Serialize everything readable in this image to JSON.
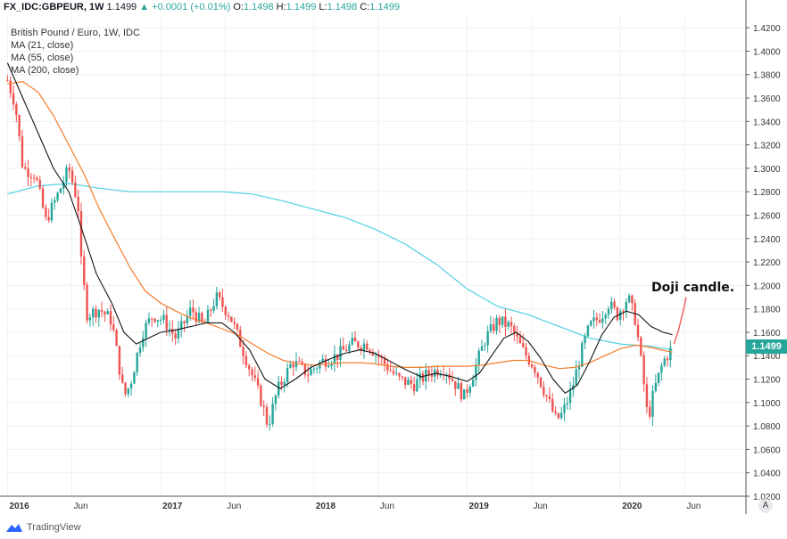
{
  "header": {
    "symbol": "FX_IDC:GBPEUR, 1W",
    "last": "1.1499",
    "change": "▲ +0.0001 (+0.01%)",
    "o_label": "O:",
    "o": "1.1498",
    "h_label": "H:",
    "h": "1.1499",
    "l_label": "L:",
    "l": "1.1498",
    "c_label": "C:",
    "c": "1.1499"
  },
  "legend": {
    "title": "British Pound / Euro, 1W, IDC",
    "ma1": "MA (21, close)",
    "ma2": "MA (55, close)",
    "ma3": "MA (200, close)"
  },
  "annotation": "Doji candle.",
  "price_badge": "1.1499",
  "scale_button": "A",
  "footer": {
    "brand": "TradingView"
  },
  "colors": {
    "up": "#26a69a",
    "down": "#ef5350",
    "ma21": "#131313",
    "ma55": "#f57c2b",
    "ma200": "#4dd0e1",
    "grid": "#eef0f3",
    "axis": "#555555"
  },
  "chart_data": {
    "type": "candlestick",
    "title": "British Pound / Euro, 1W, IDC",
    "ylim": [
      1.02,
      1.43
    ],
    "yticks": [
      "1.4200",
      "1.4000",
      "1.3800",
      "1.3600",
      "1.3400",
      "1.3200",
      "1.3000",
      "1.2800",
      "1.2600",
      "1.2400",
      "1.2200",
      "1.2000",
      "1.1800",
      "1.1600",
      "1.1400",
      "1.1200",
      "1.1000",
      "1.0800",
      "1.0600",
      "1.0400",
      "1.0200"
    ],
    "xticks": [
      {
        "label": "2016",
        "t": 2016.0
      },
      {
        "label": "Jun",
        "t": 2016.42
      },
      {
        "label": "2017",
        "t": 2017.0
      },
      {
        "label": "Jun",
        "t": 2017.42
      },
      {
        "label": "2018",
        "t": 2018.0
      },
      {
        "label": "Jun",
        "t": 2018.42
      },
      {
        "label": "2019",
        "t": 2019.0
      },
      {
        "label": "Jun",
        "t": 2019.42
      },
      {
        "label": "2020",
        "t": 2020.0
      },
      {
        "label": "Jun",
        "t": 2020.42
      }
    ],
    "xlim": [
      2015.98,
      2020.82
    ],
    "close_anchors": [
      [
        2016.0,
        1.375
      ],
      [
        2016.05,
        1.355
      ],
      [
        2016.1,
        1.3
      ],
      [
        2016.18,
        1.295
      ],
      [
        2016.25,
        1.255
      ],
      [
        2016.32,
        1.275
      ],
      [
        2016.4,
        1.3
      ],
      [
        2016.46,
        1.27
      ],
      [
        2016.48,
        1.22
      ],
      [
        2016.52,
        1.175
      ],
      [
        2016.6,
        1.18
      ],
      [
        2016.68,
        1.17
      ],
      [
        2016.76,
        1.105
      ],
      [
        2016.8,
        1.115
      ],
      [
        2016.88,
        1.16
      ],
      [
        2016.95,
        1.175
      ],
      [
        2017.02,
        1.17
      ],
      [
        2017.1,
        1.155
      ],
      [
        2017.2,
        1.18
      ],
      [
        2017.28,
        1.165
      ],
      [
        2017.36,
        1.19
      ],
      [
        2017.45,
        1.175
      ],
      [
        2017.55,
        1.14
      ],
      [
        2017.66,
        1.1
      ],
      [
        2017.7,
        1.08
      ],
      [
        2017.76,
        1.11
      ],
      [
        2017.86,
        1.135
      ],
      [
        2017.96,
        1.125
      ],
      [
        2018.05,
        1.135
      ],
      [
        2018.15,
        1.14
      ],
      [
        2018.25,
        1.15
      ],
      [
        2018.35,
        1.15
      ],
      [
        2018.45,
        1.135
      ],
      [
        2018.55,
        1.12
      ],
      [
        2018.65,
        1.115
      ],
      [
        2018.75,
        1.125
      ],
      [
        2018.85,
        1.13
      ],
      [
        2018.98,
        1.105
      ],
      [
        2019.04,
        1.125
      ],
      [
        2019.12,
        1.155
      ],
      [
        2019.2,
        1.17
      ],
      [
        2019.28,
        1.165
      ],
      [
        2019.36,
        1.145
      ],
      [
        2019.44,
        1.13
      ],
      [
        2019.52,
        1.105
      ],
      [
        2019.58,
        1.085
      ],
      [
        2019.62,
        1.09
      ],
      [
        2019.68,
        1.11
      ],
      [
        2019.76,
        1.15
      ],
      [
        2019.8,
        1.165
      ],
      [
        2019.88,
        1.175
      ],
      [
        2019.92,
        1.185
      ],
      [
        2019.98,
        1.175
      ],
      [
        2020.05,
        1.19
      ],
      [
        2020.1,
        1.17
      ],
      [
        2020.15,
        1.12
      ],
      [
        2020.18,
        1.085
      ],
      [
        2020.22,
        1.11
      ],
      [
        2020.28,
        1.135
      ],
      [
        2020.33,
        1.145
      ],
      [
        2020.34,
        1.1499
      ]
    ],
    "ma21": [
      [
        2016.0,
        1.39
      ],
      [
        2016.1,
        1.36
      ],
      [
        2016.2,
        1.33
      ],
      [
        2016.3,
        1.3
      ],
      [
        2016.4,
        1.28
      ],
      [
        2016.48,
        1.25
      ],
      [
        2016.58,
        1.21
      ],
      [
        2016.68,
        1.185
      ],
      [
        2016.76,
        1.16
      ],
      [
        2016.84,
        1.15
      ],
      [
        2016.92,
        1.155
      ],
      [
        2017.0,
        1.16
      ],
      [
        2017.1,
        1.162
      ],
      [
        2017.2,
        1.165
      ],
      [
        2017.3,
        1.168
      ],
      [
        2017.4,
        1.168
      ],
      [
        2017.48,
        1.16
      ],
      [
        2017.58,
        1.145
      ],
      [
        2017.68,
        1.12
      ],
      [
        2017.78,
        1.112
      ],
      [
        2017.88,
        1.12
      ],
      [
        2017.98,
        1.13
      ],
      [
        2018.1,
        1.137
      ],
      [
        2018.2,
        1.142
      ],
      [
        2018.3,
        1.145
      ],
      [
        2018.4,
        1.142
      ],
      [
        2018.5,
        1.135
      ],
      [
        2018.6,
        1.128
      ],
      [
        2018.7,
        1.122
      ],
      [
        2018.8,
        1.125
      ],
      [
        2018.9,
        1.122
      ],
      [
        2019.0,
        1.118
      ],
      [
        2019.08,
        1.125
      ],
      [
        2019.16,
        1.14
      ],
      [
        2019.24,
        1.155
      ],
      [
        2019.32,
        1.16
      ],
      [
        2019.4,
        1.152
      ],
      [
        2019.48,
        1.138
      ],
      [
        2019.56,
        1.12
      ],
      [
        2019.64,
        1.108
      ],
      [
        2019.72,
        1.115
      ],
      [
        2019.8,
        1.135
      ],
      [
        2019.88,
        1.158
      ],
      [
        2019.96,
        1.173
      ],
      [
        2020.04,
        1.178
      ],
      [
        2020.12,
        1.175
      ],
      [
        2020.2,
        1.165
      ],
      [
        2020.28,
        1.16
      ],
      [
        2020.34,
        1.158
      ]
    ],
    "ma55": [
      [
        2016.0,
        1.372
      ],
      [
        2016.1,
        1.374
      ],
      [
        2016.2,
        1.365
      ],
      [
        2016.3,
        1.345
      ],
      [
        2016.4,
        1.32
      ],
      [
        2016.5,
        1.295
      ],
      [
        2016.6,
        1.265
      ],
      [
        2016.7,
        1.24
      ],
      [
        2016.8,
        1.215
      ],
      [
        2016.9,
        1.195
      ],
      [
        2017.0,
        1.185
      ],
      [
        2017.1,
        1.178
      ],
      [
        2017.2,
        1.172
      ],
      [
        2017.3,
        1.168
      ],
      [
        2017.4,
        1.163
      ],
      [
        2017.5,
        1.158
      ],
      [
        2017.6,
        1.15
      ],
      [
        2017.7,
        1.142
      ],
      [
        2017.8,
        1.136
      ],
      [
        2017.9,
        1.133
      ],
      [
        2018.0,
        1.132
      ],
      [
        2018.1,
        1.133
      ],
      [
        2018.2,
        1.134
      ],
      [
        2018.3,
        1.134
      ],
      [
        2018.4,
        1.133
      ],
      [
        2018.5,
        1.131
      ],
      [
        2018.6,
        1.13
      ],
      [
        2018.7,
        1.13
      ],
      [
        2018.8,
        1.131
      ],
      [
        2018.9,
        1.131
      ],
      [
        2019.0,
        1.131
      ],
      [
        2019.1,
        1.132
      ],
      [
        2019.2,
        1.134
      ],
      [
        2019.3,
        1.136
      ],
      [
        2019.4,
        1.136
      ],
      [
        2019.5,
        1.132
      ],
      [
        2019.6,
        1.129
      ],
      [
        2019.7,
        1.13
      ],
      [
        2019.8,
        1.134
      ],
      [
        2019.9,
        1.14
      ],
      [
        2020.0,
        1.146
      ],
      [
        2020.1,
        1.149
      ],
      [
        2020.2,
        1.147
      ],
      [
        2020.3,
        1.144
      ],
      [
        2020.34,
        1.143
      ]
    ],
    "ma200": [
      [
        2016.0,
        1.278
      ],
      [
        2016.2,
        1.285
      ],
      [
        2016.4,
        1.287
      ],
      [
        2016.6,
        1.283
      ],
      [
        2016.8,
        1.28
      ],
      [
        2017.0,
        1.28
      ],
      [
        2017.2,
        1.28
      ],
      [
        2017.4,
        1.28
      ],
      [
        2017.6,
        1.278
      ],
      [
        2017.8,
        1.272
      ],
      [
        2018.0,
        1.265
      ],
      [
        2018.2,
        1.258
      ],
      [
        2018.4,
        1.248
      ],
      [
        2018.6,
        1.235
      ],
      [
        2018.8,
        1.218
      ],
      [
        2019.0,
        1.197
      ],
      [
        2019.2,
        1.182
      ],
      [
        2019.4,
        1.175
      ],
      [
        2019.6,
        1.165
      ],
      [
        2019.8,
        1.155
      ],
      [
        2020.0,
        1.15
      ],
      [
        2020.2,
        1.148
      ],
      [
        2020.34,
        1.145
      ]
    ],
    "projection": [
      [
        2020.35,
        1.15
      ],
      [
        2020.38,
        1.162
      ],
      [
        2020.41,
        1.178
      ],
      [
        2020.43,
        1.19
      ]
    ],
    "annotation": "Doji candle."
  }
}
